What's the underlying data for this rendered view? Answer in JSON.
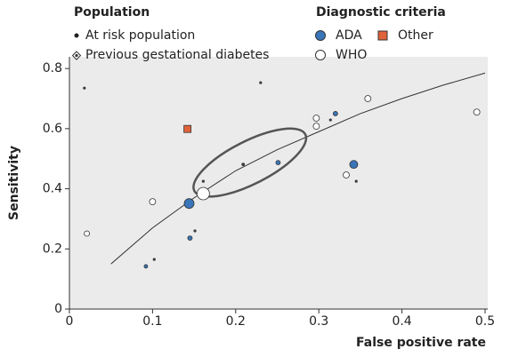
{
  "chart_data": {
    "type": "scatter",
    "x_label": "False positive rate",
    "y_label": "Sensitivity",
    "population_title": "Population",
    "population_legend": [
      "At risk population",
      "Previous gestational diabetes"
    ],
    "criteria_title": "Diagnostic criteria",
    "xlim": [
      0,
      0.5
    ],
    "ylim": [
      0,
      0.83
    ],
    "xticks": [
      0,
      0.1,
      0.2,
      0.3,
      0.4,
      0.5
    ],
    "yticks": [
      0,
      0.2,
      0.4,
      0.6,
      0.8
    ],
    "series": [
      {
        "name": "ADA",
        "color": "#3a75b9",
        "marker": "circle",
        "x": [
          0.32,
          0.251,
          0.342,
          0.144,
          0.145,
          0.092
        ],
        "values": [
          0.65,
          0.487,
          0.481,
          0.351,
          0.236,
          0.142
        ],
        "sizes": [
          2.5,
          2.5,
          4.5,
          5.5,
          2.5,
          2
        ]
      },
      {
        "name": "Other",
        "color": "#e0633a",
        "marker": "square",
        "x": [
          0.142
        ],
        "values": [
          0.599
        ],
        "sizes": [
          4
        ]
      },
      {
        "name": "WHO",
        "color": "#ffffff",
        "marker": "circle",
        "x": [
          0.018,
          0.23,
          0.297,
          0.297,
          0.359,
          0.49,
          0.314,
          0.209,
          0.161,
          0.333,
          0.345,
          0.1,
          0.161,
          0.151,
          0.021,
          0.102
        ],
        "values": [
          0.735,
          0.753,
          0.635,
          0.608,
          0.7,
          0.655,
          0.629,
          0.481,
          0.425,
          0.446,
          0.425,
          0.357,
          0.384,
          0.26,
          0.251,
          0.165
        ],
        "sizes": [
          1.2,
          1.2,
          3.5,
          3.5,
          3.5,
          3.5,
          1.2,
          1.5,
          1.2,
          3.5,
          1.2,
          3.5,
          7,
          1.2,
          3,
          1.2
        ]
      }
    ],
    "curve": {
      "x": [
        0.05,
        0.1,
        0.15,
        0.2,
        0.25,
        0.3,
        0.35,
        0.4,
        0.45,
        0.5
      ],
      "values": [
        0.15,
        0.27,
        0.37,
        0.46,
        0.53,
        0.59,
        0.65,
        0.7,
        0.745,
        0.785
      ]
    },
    "confidence_region": {
      "x": 0.217,
      "y": 0.487
    }
  }
}
